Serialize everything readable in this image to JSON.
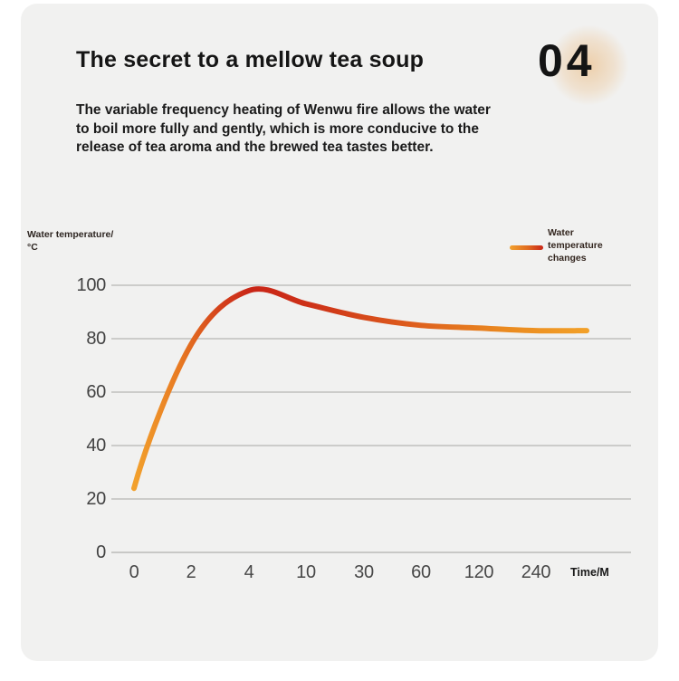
{
  "page": {
    "section_number": "04",
    "title": "The secret to a mellow tea soup",
    "description_lines": [
      "The variable frequency heating of Wenwu fire allows the water",
      "to boil more fully and gently, which is more conducive to the",
      "release of tea aroma and the brewed tea tastes better."
    ]
  },
  "chart_data": {
    "type": "line",
    "title": "",
    "xlabel": "Time/M",
    "ylabel": "Water temperature/°C",
    "legend": [
      "Water temperature changes"
    ],
    "legend_position": "top-right",
    "categories": [
      "0",
      "2",
      "4",
      "10",
      "30",
      "60",
      "120",
      "240"
    ],
    "yticks": [
      100,
      80,
      60,
      40,
      20,
      0
    ],
    "ylim": [
      0,
      100
    ],
    "grid": "horizontal",
    "series": [
      {
        "name": "Water temperature changes",
        "values": [
          24,
          78,
          98,
          93,
          88,
          85,
          84,
          83
        ]
      }
    ],
    "annotations": "curve rises steeply from ~24°C at 0 min, peaks ~98°C at 4 min, then slowly settles to ~83°C by 240 min",
    "line_gradient": [
      "#F2A12D",
      "#C92517",
      "#F29E25"
    ]
  },
  "colors": {
    "page_background": "#FFFFFF",
    "card_background": "#F1F1F0",
    "text_dark": "#1A1A1A",
    "tick_gray": "#454545",
    "gridline": "#B6B6B4",
    "glow": "#ECC494",
    "curve_start": "#F2A12D",
    "curve_peak": "#C92517",
    "curve_end": "#F29E25"
  }
}
